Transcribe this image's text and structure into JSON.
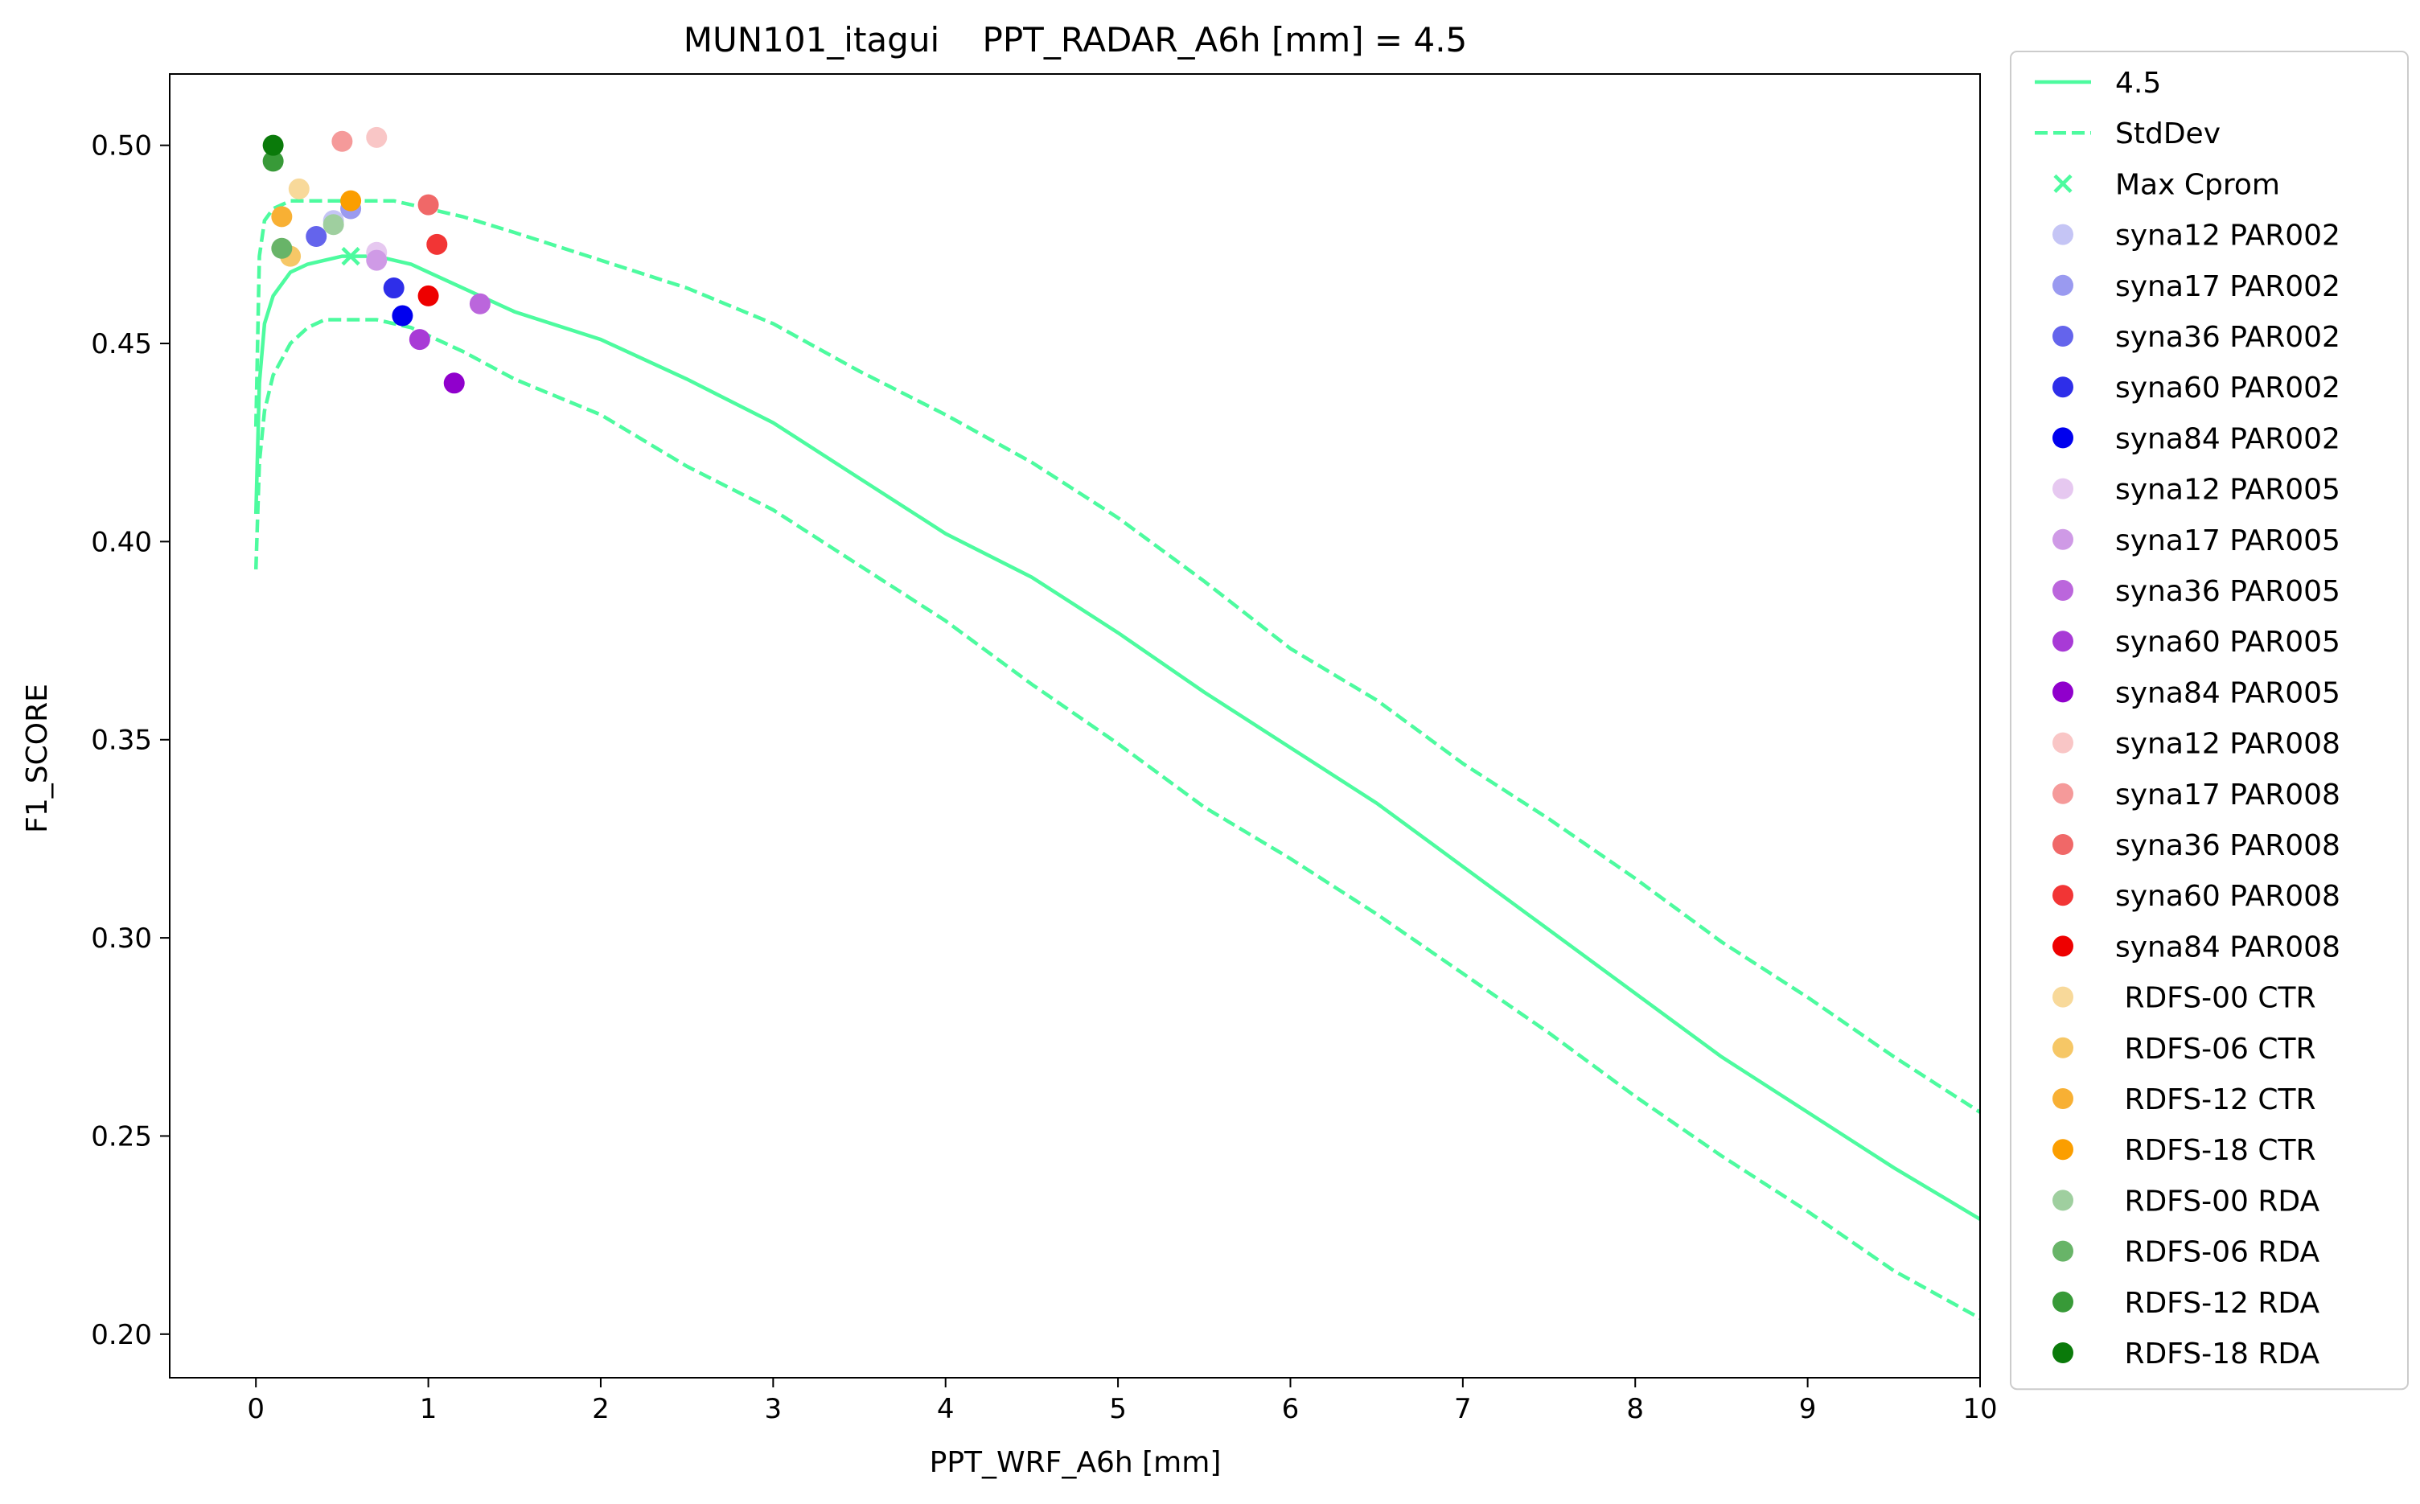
{
  "chart_data": {
    "type": "line",
    "title": "MUN101_itagui    PPT_RADAR_A6h [mm] = 4.5",
    "xlabel": "PPT_WRF_A6h [mm]",
    "ylabel": "F1_SCORE",
    "xlim": [
      -0.5,
      10
    ],
    "ylim": [
      0.189,
      0.518
    ],
    "xticks": [
      0,
      1,
      2,
      3,
      4,
      5,
      6,
      7,
      8,
      9,
      10
    ],
    "yticks": [
      0.2,
      0.25,
      0.3,
      0.35,
      0.4,
      0.45,
      0.5
    ],
    "xtick_labels": [
      "0",
      "1",
      "2",
      "3",
      "4",
      "5",
      "6",
      "7",
      "8",
      "9",
      "10"
    ],
    "ytick_labels": [
      "0.20",
      "0.25",
      "0.30",
      "0.35",
      "0.40",
      "0.45",
      "0.50"
    ],
    "grid": false,
    "legend_position": "outside-right",
    "line_color": "#4dfb9f",
    "lines": [
      {
        "name": "4.5",
        "style": "solid",
        "x": [
          0,
          0.02,
          0.05,
          0.1,
          0.2,
          0.3,
          0.4,
          0.5,
          0.55,
          0.6,
          0.7,
          0.8,
          0.9,
          1.0,
          1.2,
          1.5,
          2.0,
          2.5,
          3.0,
          3.5,
          4.0,
          4.5,
          5.0,
          5.5,
          6.0,
          6.5,
          7.0,
          7.5,
          8.0,
          8.5,
          9.0,
          9.5,
          10.0
        ],
        "y": [
          0.407,
          0.44,
          0.455,
          0.462,
          0.468,
          0.47,
          0.471,
          0.472,
          0.472,
          0.472,
          0.472,
          0.471,
          0.47,
          0.468,
          0.464,
          0.458,
          0.451,
          0.441,
          0.43,
          0.416,
          0.402,
          0.391,
          0.377,
          0.362,
          0.348,
          0.334,
          0.318,
          0.302,
          0.286,
          0.27,
          0.256,
          0.242,
          0.229
        ]
      },
      {
        "name": "StdDev",
        "style": "dashed",
        "x": [
          0,
          0.02,
          0.05,
          0.1,
          0.2,
          0.3,
          0.4,
          0.5,
          0.55,
          0.6,
          0.7,
          0.8,
          0.9,
          1.0,
          1.2,
          1.5,
          2.0,
          2.5,
          3.0,
          3.5,
          4.0,
          4.5,
          5.0,
          5.5,
          6.0,
          6.5,
          7.0,
          7.5,
          8.0,
          8.5,
          9.0,
          9.5,
          10.0
        ],
        "y": [
          0.429,
          0.472,
          0.481,
          0.484,
          0.486,
          0.486,
          0.486,
          0.486,
          0.486,
          0.486,
          0.486,
          0.486,
          0.485,
          0.484,
          0.482,
          0.478,
          0.471,
          0.464,
          0.455,
          0.443,
          0.432,
          0.42,
          0.406,
          0.39,
          0.373,
          0.36,
          0.344,
          0.33,
          0.315,
          0.299,
          0.285,
          0.27,
          0.256
        ]
      },
      {
        "name": "",
        "style": "dashed",
        "x": [
          0,
          0.02,
          0.05,
          0.1,
          0.2,
          0.3,
          0.4,
          0.5,
          0.55,
          0.6,
          0.7,
          0.8,
          0.9,
          1.0,
          1.2,
          1.5,
          2.0,
          2.5,
          3.0,
          3.5,
          4.0,
          4.5,
          5.0,
          5.5,
          6.0,
          6.5,
          7.0,
          7.5,
          8.0,
          8.5,
          9.0,
          9.5,
          10.0
        ],
        "y": [
          0.393,
          0.42,
          0.433,
          0.442,
          0.45,
          0.454,
          0.456,
          0.456,
          0.456,
          0.456,
          0.456,
          0.455,
          0.454,
          0.452,
          0.448,
          0.441,
          0.432,
          0.419,
          0.408,
          0.394,
          0.38,
          0.364,
          0.349,
          0.333,
          0.32,
          0.306,
          0.291,
          0.276,
          0.26,
          0.245,
          0.231,
          0.216,
          0.204
        ]
      }
    ],
    "max_point": {
      "name": "Max Cprom",
      "x": 0.55,
      "y": 0.472
    },
    "series": [
      {
        "name": "syna12 PAR002",
        "color": "#c5c5f5",
        "x": 0.45,
        "y": 0.481
      },
      {
        "name": "syna17 PAR002",
        "color": "#9a9af0",
        "x": 0.55,
        "y": 0.484
      },
      {
        "name": "syna36 PAR002",
        "color": "#6464ec",
        "x": 0.35,
        "y": 0.477
      },
      {
        "name": "syna60 PAR002",
        "color": "#2e2ee9",
        "x": 0.8,
        "y": 0.464
      },
      {
        "name": "syna84 PAR002",
        "color": "#0000ee",
        "x": 0.85,
        "y": 0.457
      },
      {
        "name": "syna12 PAR005",
        "color": "#e6c8f0",
        "x": 0.7,
        "y": 0.473
      },
      {
        "name": "syna17 PAR005",
        "color": "#cf9ae6",
        "x": 0.7,
        "y": 0.471
      },
      {
        "name": "syna36 PAR005",
        "color": "#bb66dc",
        "x": 1.3,
        "y": 0.46
      },
      {
        "name": "syna60 PAR005",
        "color": "#a83ad6",
        "x": 0.95,
        "y": 0.451
      },
      {
        "name": "syna84 PAR005",
        "color": "#9000cc",
        "x": 1.15,
        "y": 0.44
      },
      {
        "name": "syna12 PAR008",
        "color": "#f9c6c6",
        "x": 0.7,
        "y": 0.502
      },
      {
        "name": "syna17 PAR008",
        "color": "#f59a9a",
        "x": 0.5,
        "y": 0.501
      },
      {
        "name": "syna36 PAR008",
        "color": "#f06868",
        "x": 1.0,
        "y": 0.485
      },
      {
        "name": "syna60 PAR008",
        "color": "#f23535",
        "x": 1.05,
        "y": 0.475
      },
      {
        "name": "syna84 PAR008",
        "color": "#ee0000",
        "x": 1.0,
        "y": 0.462
      },
      {
        "name": " RDFS-00 CTR",
        "color": "#f8d99a",
        "x": 0.25,
        "y": 0.489
      },
      {
        "name": " RDFS-06 CTR",
        "color": "#f6c766",
        "x": 0.2,
        "y": 0.472
      },
      {
        "name": " RDFS-12 CTR",
        "color": "#f8b034",
        "x": 0.15,
        "y": 0.482
      },
      {
        "name": " RDFS-18 CTR",
        "color": "#fb9e00",
        "x": 0.55,
        "y": 0.486
      },
      {
        "name": " RDFS-00 RDA",
        "color": "#9fcf9f",
        "x": 0.45,
        "y": 0.48
      },
      {
        "name": " RDFS-06 RDA",
        "color": "#68b468",
        "x": 0.15,
        "y": 0.474
      },
      {
        "name": " RDFS-12 RDA",
        "color": "#389a38",
        "x": 0.1,
        "y": 0.496
      },
      {
        "name": " RDFS-18 RDA",
        "color": "#0a7a0a",
        "x": 0.1,
        "y": 0.5
      }
    ]
  }
}
